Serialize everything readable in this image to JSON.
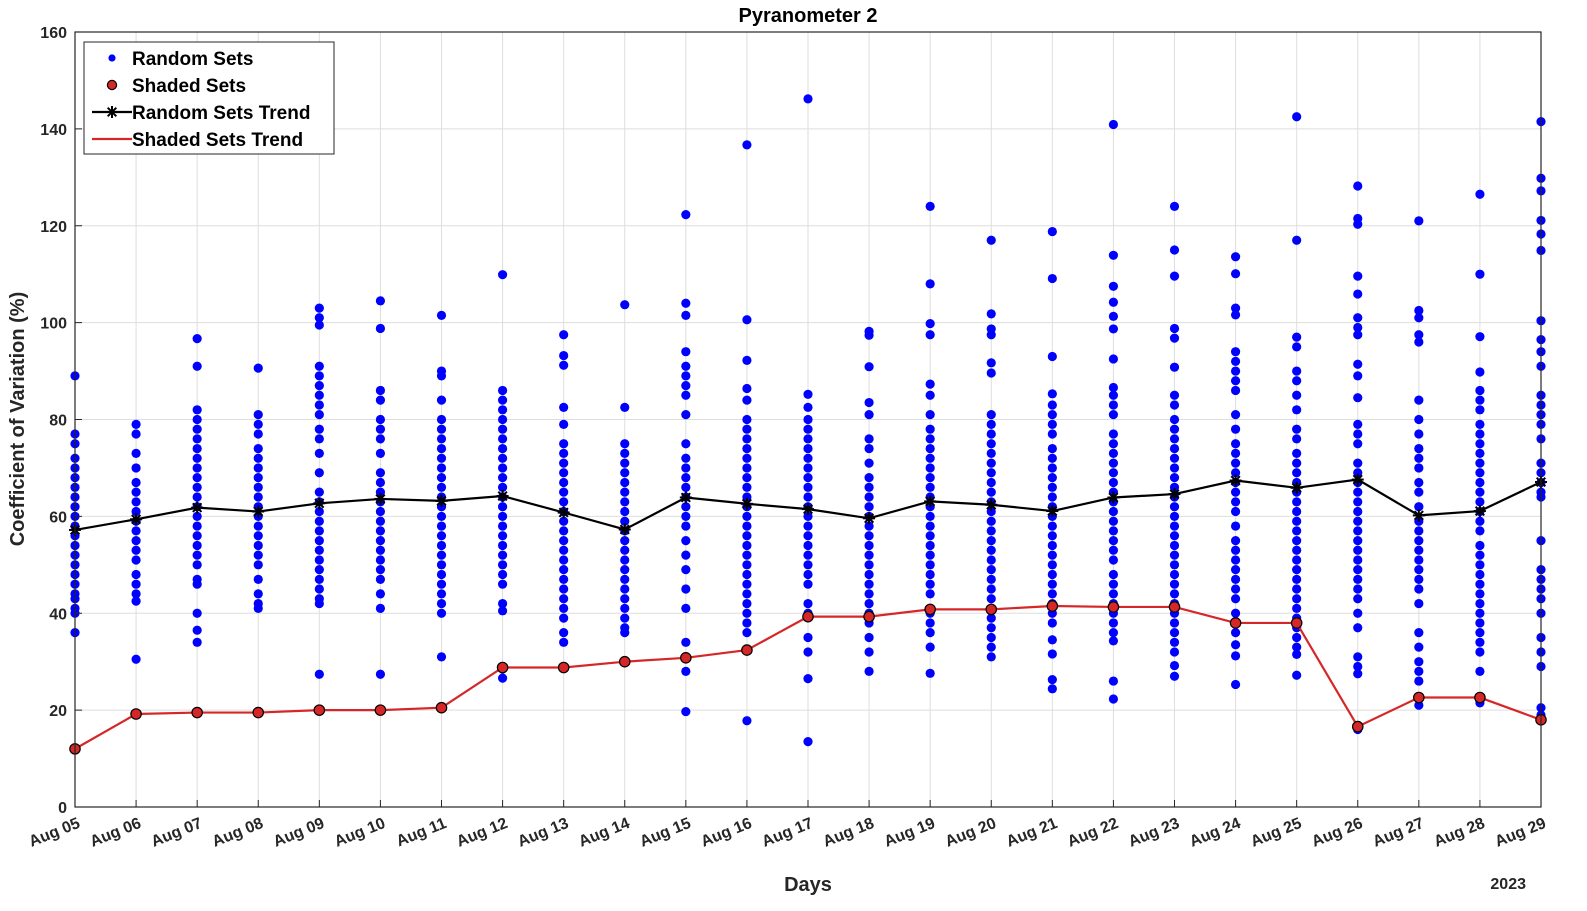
{
  "chart_data": {
    "type": "scatter",
    "title": "Pyranometer 2",
    "xlabel": "Days",
    "ylabel": "Coefficient of Variation (%)",
    "year_label": "2023",
    "ylim": [
      0,
      160
    ],
    "yticks": [
      0,
      20,
      40,
      60,
      80,
      100,
      120,
      140,
      160
    ],
    "categories": [
      "Aug 05",
      "Aug 06",
      "Aug 07",
      "Aug 08",
      "Aug 09",
      "Aug 10",
      "Aug 11",
      "Aug 12",
      "Aug 13",
      "Aug 14",
      "Aug 15",
      "Aug 16",
      "Aug 17",
      "Aug 18",
      "Aug 19",
      "Aug 20",
      "Aug 21",
      "Aug 22",
      "Aug 23",
      "Aug 24",
      "Aug 25",
      "Aug 26",
      "Aug 27",
      "Aug 28",
      "Aug 29"
    ],
    "grid": true,
    "legend_position": "top-left",
    "colors": {
      "random": "#0000ff",
      "shaded": "#d62728",
      "random_trend": "#000000",
      "shaded_trend": "#d62728"
    },
    "legend": [
      {
        "key": "random",
        "label": "Random Sets"
      },
      {
        "key": "shaded",
        "label": "Shaded Sets"
      },
      {
        "key": "random_trend",
        "label": "Random Sets Trend"
      },
      {
        "key": "shaded_trend",
        "label": "Shaded Sets Trend"
      }
    ],
    "series": [
      {
        "name": "Random Sets Trend",
        "values": [
          57.2,
          59.4,
          61.8,
          61.0,
          62.7,
          63.6,
          63.2,
          64.2,
          60.8,
          57.3,
          63.9,
          62.6,
          61.5,
          59.6,
          63.1,
          62.4,
          61.1,
          63.9,
          64.6,
          67.4,
          65.9,
          67.6,
          60.2,
          61.1,
          67.1
        ]
      },
      {
        "name": "Shaded Sets Trend",
        "values": [
          12.0,
          19.2,
          19.5,
          19.5,
          20.0,
          20.0,
          20.5,
          28.8,
          28.8,
          30.0,
          30.8,
          32.4,
          39.3,
          39.3,
          40.8,
          40.8,
          41.5,
          41.3,
          41.3,
          38.0,
          38.0,
          16.6,
          22.6,
          22.6,
          18.0
        ]
      }
    ],
    "random_points": [
      [
        89.0,
        77.0,
        75.0,
        72.0,
        70.0,
        68.0,
        66.0,
        64.0,
        62.0,
        60.0,
        58.0,
        56.0,
        54.0,
        52.0,
        50.0,
        48.0,
        46.0,
        44.0,
        43.0,
        41.0,
        40.0,
        36.0
      ],
      [
        79.0,
        77.0,
        73.0,
        70.0,
        67.0,
        65.0,
        63.0,
        61.0,
        59.0,
        57.0,
        55.0,
        53.0,
        51.0,
        48.0,
        46.0,
        44.0,
        42.5,
        30.5
      ],
      [
        96.7,
        91.0,
        82.0,
        80.0,
        78.0,
        76.0,
        74.0,
        72.0,
        70.0,
        68.0,
        66.0,
        64.0,
        62.0,
        60.0,
        58.0,
        56.0,
        54.0,
        52.0,
        50.0,
        47.0,
        46.0,
        40.0,
        36.5,
        34.0
      ],
      [
        90.6,
        81.0,
        79.0,
        77.0,
        74.0,
        72.0,
        70.0,
        68.0,
        66.0,
        64.0,
        62.0,
        60.0,
        58.0,
        56.0,
        54.0,
        52.0,
        50.0,
        47.0,
        44.0,
        42.0,
        41.0
      ],
      [
        103.0,
        101.0,
        99.5,
        91.0,
        89.0,
        87.0,
        85.0,
        83.0,
        81.0,
        78.0,
        76.0,
        73.0,
        69.0,
        65.0,
        63.0,
        61.0,
        59.0,
        57.0,
        55.0,
        53.0,
        51.0,
        49.0,
        47.0,
        45.0,
        43.0,
        42.0,
        27.4
      ],
      [
        104.5,
        98.8,
        86.0,
        84.0,
        80.0,
        78.0,
        76.0,
        73.0,
        69.0,
        67.0,
        65.0,
        63.0,
        61.0,
        59.0,
        57.0,
        55.0,
        53.0,
        51.0,
        49.0,
        47.0,
        44.0,
        41.0,
        27.4
      ],
      [
        101.5,
        90.0,
        89.0,
        84.0,
        80.0,
        78.0,
        76.0,
        74.0,
        72.0,
        70.0,
        68.0,
        66.0,
        64.0,
        62.0,
        60.0,
        58.0,
        56.0,
        54.0,
        52.0,
        50.0,
        48.0,
        46.0,
        44.0,
        42.0,
        40.0,
        31.0
      ],
      [
        109.9,
        86.0,
        84.0,
        82.0,
        80.0,
        78.0,
        76.0,
        74.0,
        72.0,
        70.0,
        68.0,
        66.0,
        64.0,
        62.0,
        60.0,
        58.0,
        56.0,
        54.0,
        52.0,
        50.0,
        48.0,
        46.0,
        42.0,
        40.5,
        28.5,
        26.6
      ],
      [
        97.5,
        93.2,
        91.2,
        82.5,
        79.0,
        75.0,
        73.0,
        71.0,
        69.0,
        67.0,
        65.0,
        63.0,
        61.0,
        59.0,
        57.0,
        55.0,
        53.0,
        51.0,
        49.0,
        47.0,
        45.0,
        43.0,
        41.0,
        39.0,
        36.0,
        34.0
      ],
      [
        103.7,
        82.5,
        75.0,
        73.0,
        71.0,
        69.0,
        67.0,
        65.0,
        63.0,
        61.0,
        59.0,
        57.0,
        55.0,
        53.0,
        51.0,
        49.0,
        47.0,
        45.0,
        43.0,
        41.0,
        39.0,
        37.0,
        36.0
      ],
      [
        122.3,
        104.0,
        101.5,
        94.0,
        91.0,
        89.0,
        87.0,
        85.0,
        81.0,
        75.0,
        72.0,
        70.0,
        68.0,
        66.0,
        64.0,
        62.0,
        60.0,
        58.0,
        55.0,
        52.0,
        49.0,
        45.0,
        41.0,
        34.0,
        28.0,
        19.7
      ],
      [
        136.7,
        100.6,
        92.2,
        86.4,
        84.0,
        80.0,
        78.0,
        76.0,
        74.0,
        72.0,
        70.0,
        68.0,
        66.0,
        64.0,
        62.0,
        60.0,
        58.0,
        56.0,
        54.0,
        52.0,
        50.0,
        48.0,
        46.0,
        44.0,
        42.0,
        40.0,
        38.0,
        36.0,
        17.8
      ],
      [
        146.2,
        85.2,
        82.5,
        80.0,
        78.0,
        76.0,
        74.0,
        72.0,
        70.0,
        68.0,
        66.0,
        64.0,
        62.0,
        60.0,
        58.0,
        56.0,
        54.0,
        52.0,
        50.0,
        48.0,
        46.0,
        42.0,
        40.0,
        35.0,
        32.0,
        26.5,
        13.5
      ],
      [
        98.2,
        97.4,
        90.9,
        83.5,
        81.0,
        76.0,
        74.0,
        71.0,
        68.0,
        66.0,
        64.0,
        62.0,
        60.0,
        58.0,
        56.0,
        54.0,
        52.0,
        50.0,
        48.0,
        46.0,
        44.0,
        42.0,
        40.0,
        38.0,
        35.0,
        32.0,
        28.0
      ],
      [
        124.0,
        108.0,
        99.8,
        97.5,
        87.3,
        85.0,
        81.0,
        78.0,
        76.0,
        74.0,
        72.0,
        70.0,
        68.0,
        66.0,
        64.0,
        62.0,
        60.0,
        58.0,
        56.0,
        54.0,
        52.0,
        50.0,
        48.0,
        46.0,
        44.0,
        40.0,
        38.0,
        36.0,
        33.0,
        27.6
      ],
      [
        117.0,
        101.8,
        98.7,
        97.5,
        91.7,
        89.6,
        81.0,
        79.0,
        77.0,
        75.0,
        73.0,
        71.0,
        69.0,
        67.0,
        65.0,
        63.0,
        61.0,
        59.0,
        57.0,
        55.0,
        53.0,
        51.0,
        49.0,
        47.0,
        45.0,
        43.0,
        41.0,
        39.0,
        37.0,
        35.0,
        33.0,
        31.0
      ],
      [
        118.8,
        109.1,
        93.0,
        85.3,
        83.0,
        81.0,
        79.0,
        77.0,
        74.0,
        72.0,
        70.0,
        68.0,
        66.0,
        64.0,
        62.0,
        60.0,
        58.0,
        56.0,
        54.0,
        52.0,
        50.0,
        48.0,
        46.0,
        44.0,
        42.0,
        40.0,
        38.0,
        34.5,
        31.6,
        26.3,
        24.4
      ],
      [
        140.9,
        113.9,
        107.5,
        104.2,
        101.3,
        98.7,
        92.5,
        86.6,
        85.0,
        83.0,
        81.0,
        77.0,
        75.0,
        73.0,
        71.0,
        69.0,
        67.0,
        65.0,
        63.0,
        61.0,
        59.0,
        57.0,
        55.0,
        53.0,
        51.0,
        48.0,
        46.0,
        44.0,
        42.0,
        40.0,
        38.0,
        36.0,
        34.3,
        26.0,
        22.3
      ],
      [
        124.0,
        115.0,
        109.6,
        98.8,
        96.8,
        90.8,
        85.0,
        83.0,
        80.0,
        78.0,
        76.0,
        74.0,
        72.0,
        70.0,
        68.0,
        66.0,
        64.0,
        62.0,
        60.0,
        58.0,
        56.0,
        54.0,
        52.0,
        50.0,
        48.0,
        46.0,
        44.0,
        42.0,
        40.0,
        38.0,
        36.0,
        34.0,
        32.0,
        29.2,
        27.0
      ],
      [
        113.6,
        110.1,
        103.0,
        101.6,
        94.0,
        92.0,
        90.0,
        88.0,
        86.0,
        81.0,
        78.0,
        75.0,
        73.0,
        71.0,
        69.0,
        67.0,
        65.0,
        63.0,
        61.0,
        58.0,
        55.0,
        53.0,
        51.0,
        49.0,
        47.0,
        45.0,
        43.0,
        40.0,
        36.0,
        33.5,
        31.2,
        25.3
      ],
      [
        142.5,
        117.0,
        97.0,
        95.0,
        90.0,
        88.0,
        85.0,
        82.0,
        78.0,
        76.0,
        73.0,
        71.0,
        69.0,
        67.0,
        65.0,
        63.0,
        61.0,
        59.0,
        57.0,
        55.0,
        53.0,
        51.0,
        49.0,
        47.0,
        45.0,
        43.0,
        41.0,
        39.0,
        37.0,
        35.0,
        33.0,
        31.5,
        27.2
      ],
      [
        128.2,
        121.5,
        120.3,
        109.6,
        105.9,
        101.0,
        99.0,
        97.5,
        91.4,
        89.0,
        84.5,
        79.0,
        77.0,
        75.0,
        71.0,
        69.0,
        67.0,
        65.0,
        63.0,
        61.0,
        59.0,
        57.0,
        55.0,
        53.0,
        51.0,
        49.0,
        47.0,
        45.0,
        43.0,
        40.0,
        37.0,
        31.0,
        29.0,
        27.5,
        16.0
      ],
      [
        121.0,
        102.5,
        101.0,
        97.5,
        96.0,
        84.0,
        80.0,
        77.0,
        74.0,
        72.0,
        70.0,
        67.0,
        65.0,
        62.0,
        59.0,
        57.0,
        55.0,
        53.0,
        51.0,
        49.0,
        47.0,
        45.0,
        42.0,
        36.0,
        33.0,
        30.0,
        28.0,
        26.0,
        21.0
      ],
      [
        126.5,
        110.0,
        97.1,
        89.8,
        86.0,
        84.0,
        82.0,
        79.0,
        77.0,
        75.0,
        73.0,
        71.0,
        69.0,
        67.0,
        65.0,
        63.0,
        61.0,
        59.0,
        57.0,
        54.0,
        52.0,
        50.0,
        48.0,
        46.0,
        44.0,
        42.0,
        40.0,
        38.0,
        36.0,
        34.0,
        32.0,
        28.0,
        22.0,
        21.5
      ],
      [
        141.5,
        129.8,
        127.2,
        121.1,
        118.3,
        114.9,
        100.4,
        96.5,
        94.0,
        91.0,
        85.0,
        83.0,
        81.0,
        79.0,
        76.0,
        71.0,
        69.0,
        67.0,
        65.0,
        64.0,
        55.0,
        49.0,
        47.0,
        45.0,
        43.0,
        40.0,
        35.0,
        32.0,
        29.0,
        20.5,
        19.0
      ]
    ]
  }
}
